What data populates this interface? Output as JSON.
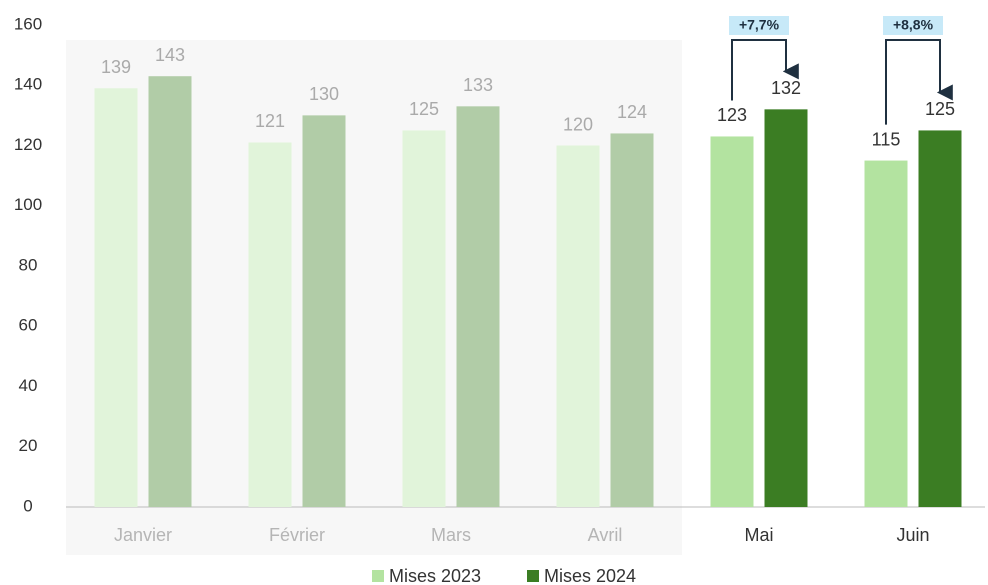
{
  "chart_data": {
    "type": "bar",
    "categories": [
      "Janvier",
      "Février",
      "Mars",
      "Avril",
      "Mai",
      "Juin"
    ],
    "series": [
      {
        "name": "Mises 2023",
        "color": "#b3e3a0",
        "values": [
          139,
          121,
          125,
          120,
          123,
          115
        ]
      },
      {
        "name": "Mises 2024",
        "color": "#3b7d23",
        "values": [
          143,
          130,
          133,
          124,
          132,
          125
        ]
      }
    ],
    "annotations": [
      null,
      null,
      null,
      null,
      "+7,7%",
      "+8,8%"
    ],
    "ylim": [
      0,
      160
    ],
    "yticks": [
      0,
      20,
      40,
      60,
      80,
      100,
      120,
      140,
      160
    ],
    "grid": false,
    "legend": "bottom"
  }
}
